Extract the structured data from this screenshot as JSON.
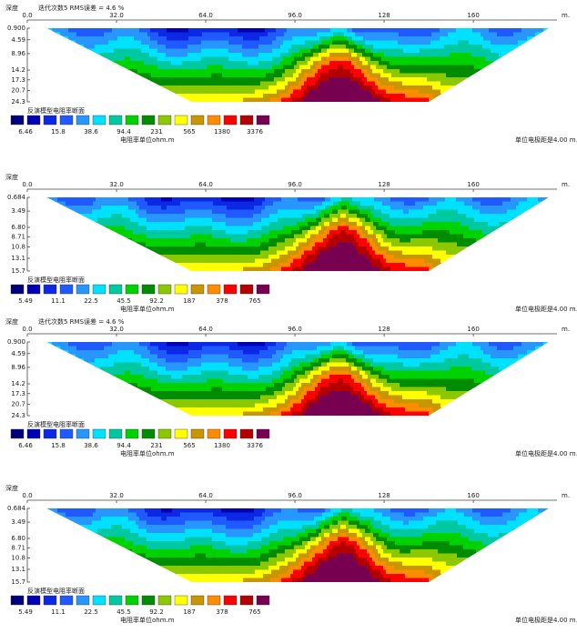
{
  "chart_data": [
    {
      "type": "contour",
      "y_label": "深度",
      "title": "迭代次数5 RMS误差 = 4.6 %",
      "x_unit": "m.",
      "xlim": [
        0,
        190
      ],
      "xticks": [
        {
          "value": 0,
          "label": "0.0"
        },
        {
          "value": 32,
          "label": "32.0"
        },
        {
          "value": 64,
          "label": "64.0"
        },
        {
          "value": 96,
          "label": "96.0"
        },
        128,
        160
      ],
      "ylim": [
        0.9,
        24.3
      ],
      "yticks": [
        {
          "value": 0.9,
          "label": "0.900"
        },
        4.59,
        8.96,
        14.2,
        17.3,
        20.7,
        24.3
      ],
      "legend_title": "反演模型电阻率断面",
      "colorbar_ticks": [
        6.46,
        15.8,
        38.6,
        94.4,
        231,
        565,
        1380,
        3376
      ],
      "colorbar_label": "电阻率单位ohm.m",
      "footnote": "单位电极距是4.00 m.",
      "colors": [
        "#00007a",
        "#0000b4",
        "#0a28e6",
        "#1e5aff",
        "#2896ff",
        "#00e0ff",
        "#00c8a0",
        "#00d200",
        "#008c00",
        "#8cc800",
        "#ffff00",
        "#c89600",
        "#ff8c00",
        "#ff0000",
        "#b40000",
        "#780050"
      ]
    },
    {
      "type": "contour",
      "y_label": "深度",
      "x_unit": "m.",
      "xlim": [
        0,
        190
      ],
      "xticks": [
        {
          "value": 0,
          "label": "0.0"
        },
        {
          "value": 32,
          "label": "32.0"
        },
        {
          "value": 64,
          "label": "64.0"
        },
        {
          "value": 96,
          "label": "96.0"
        },
        128,
        160
      ],
      "ylim": [
        0.684,
        15.7
      ],
      "yticks": [
        {
          "value": 0.684,
          "label": "0.684"
        },
        3.49,
        {
          "value": 6.8,
          "label": "6.80"
        },
        8.71,
        10.8,
        13.1,
        15.7
      ],
      "legend_title": "反演模型电阻率断面",
      "colorbar_ticks": [
        5.49,
        11.1,
        22.5,
        45.5,
        92.2,
        187,
        378,
        765
      ],
      "colorbar_label": "电阻率单位ohm.m",
      "footnote": "单位电极距是4.00 m.",
      "colors": [
        "#00007a",
        "#0000b4",
        "#0a28e6",
        "#1e5aff",
        "#2896ff",
        "#00e0ff",
        "#00c8a0",
        "#00d200",
        "#008c00",
        "#8cc800",
        "#ffff00",
        "#c89600",
        "#ff8c00",
        "#ff0000",
        "#b40000",
        "#780050"
      ]
    },
    {
      "type": "contour",
      "y_label": "深度",
      "title": "迭代次数5 RMS误差 = 4.6 %",
      "x_unit": "m.",
      "xlim": [
        0,
        190
      ],
      "xticks": [
        {
          "value": 0,
          "label": "0.0"
        },
        {
          "value": 32,
          "label": "32.0"
        },
        {
          "value": 64,
          "label": "64.0"
        },
        {
          "value": 96,
          "label": "96.0"
        },
        128,
        160
      ],
      "ylim": [
        0.9,
        24.3
      ],
      "yticks": [
        {
          "value": 0.9,
          "label": "0.900"
        },
        4.59,
        8.96,
        14.2,
        17.3,
        20.7,
        24.3
      ],
      "legend_title": "反演模型电阻率断面",
      "colorbar_ticks": [
        6.46,
        15.8,
        38.6,
        94.4,
        231,
        565,
        1380,
        3376
      ],
      "colorbar_label": "电阻率单位ohm.m",
      "footnote": "单位电极距是4.00 m.",
      "colors": [
        "#00007a",
        "#0000b4",
        "#0a28e6",
        "#1e5aff",
        "#2896ff",
        "#00e0ff",
        "#00c8a0",
        "#00d200",
        "#008c00",
        "#8cc800",
        "#ffff00",
        "#c89600",
        "#ff8c00",
        "#ff0000",
        "#b40000",
        "#780050"
      ]
    },
    {
      "type": "contour",
      "y_label": "深度",
      "x_unit": "m.",
      "xlim": [
        0,
        190
      ],
      "xticks": [
        {
          "value": 0,
          "label": "0.0"
        },
        {
          "value": 32,
          "label": "32.0"
        },
        {
          "value": 64,
          "label": "64.0"
        },
        {
          "value": 96,
          "label": "96.0"
        },
        128,
        160
      ],
      "ylim": [
        0.684,
        15.7
      ],
      "yticks": [
        {
          "value": 0.684,
          "label": "0.684"
        },
        3.49,
        {
          "value": 6.8,
          "label": "6.80"
        },
        8.71,
        10.8,
        13.1,
        15.7
      ],
      "legend_title": "反演模型电阻率断面",
      "colorbar_ticks": [
        5.49,
        11.1,
        22.5,
        45.5,
        92.2,
        187,
        378,
        765
      ],
      "colorbar_label": "电阻率单位ohm.m",
      "footnote": "单位电极距是4.00 m.",
      "colors": [
        "#00007a",
        "#0000b4",
        "#0a28e6",
        "#1e5aff",
        "#2896ff",
        "#00e0ff",
        "#00c8a0",
        "#00d200",
        "#008c00",
        "#8cc800",
        "#ffff00",
        "#c89600",
        "#ff8c00",
        "#ff0000",
        "#b40000",
        "#780050"
      ]
    }
  ]
}
